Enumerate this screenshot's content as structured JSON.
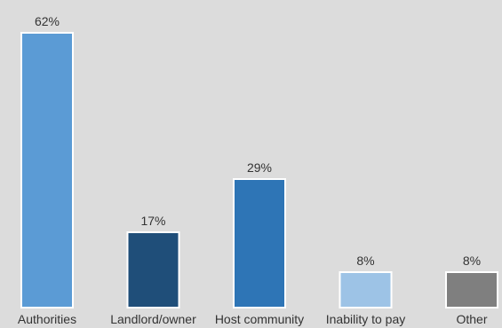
{
  "chart_data": {
    "type": "bar",
    "categories": [
      "Authorities",
      "Landlord/owner",
      "Host community",
      "Inability to pay",
      "Other"
    ],
    "values": [
      62,
      17,
      29,
      8,
      8
    ],
    "value_labels": [
      "62%",
      "17%",
      "29%",
      "8%",
      "8%"
    ],
    "colors": [
      "#5b9bd5",
      "#1f4e79",
      "#2e75b6",
      "#9dc3e6",
      "#7f7f7f"
    ],
    "title": "",
    "xlabel": "",
    "ylabel": "",
    "ylim": [
      0,
      62
    ],
    "grid": false,
    "legend": "none"
  }
}
